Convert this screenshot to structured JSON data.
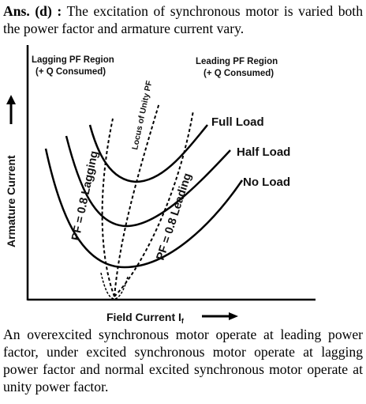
{
  "intro": {
    "label": "Ans. (d)",
    "separator": ":",
    "text": "The excitation of synchronous motor is varied both the power factor and armature current vary."
  },
  "diagram": {
    "y_axis_label": "Armature Current",
    "x_axis_label": "Field Current I",
    "x_axis_subscript": "f",
    "lagging_region_title": "Lagging PF Region",
    "lagging_region_sub": "(+ Q Consumed)",
    "leading_region_title": "Leading PF Region",
    "leading_region_sub": "(+ Q Consumed)",
    "locus_label": "Locus of Unity PF",
    "pf_lagging_label": "PF = 0.8 Lagging",
    "pf_leading_label": "PF = 0.8 Leading",
    "curves": [
      {
        "label": "Full Load"
      },
      {
        "label": "Half Load"
      },
      {
        "label": "No Load"
      }
    ]
  },
  "outro": {
    "text": "An overexcited synchronous motor operate at leading power factor, under excited synchronous motor operate at lagging power factor and normal excited synchronous motor operate at unity power factor."
  }
}
